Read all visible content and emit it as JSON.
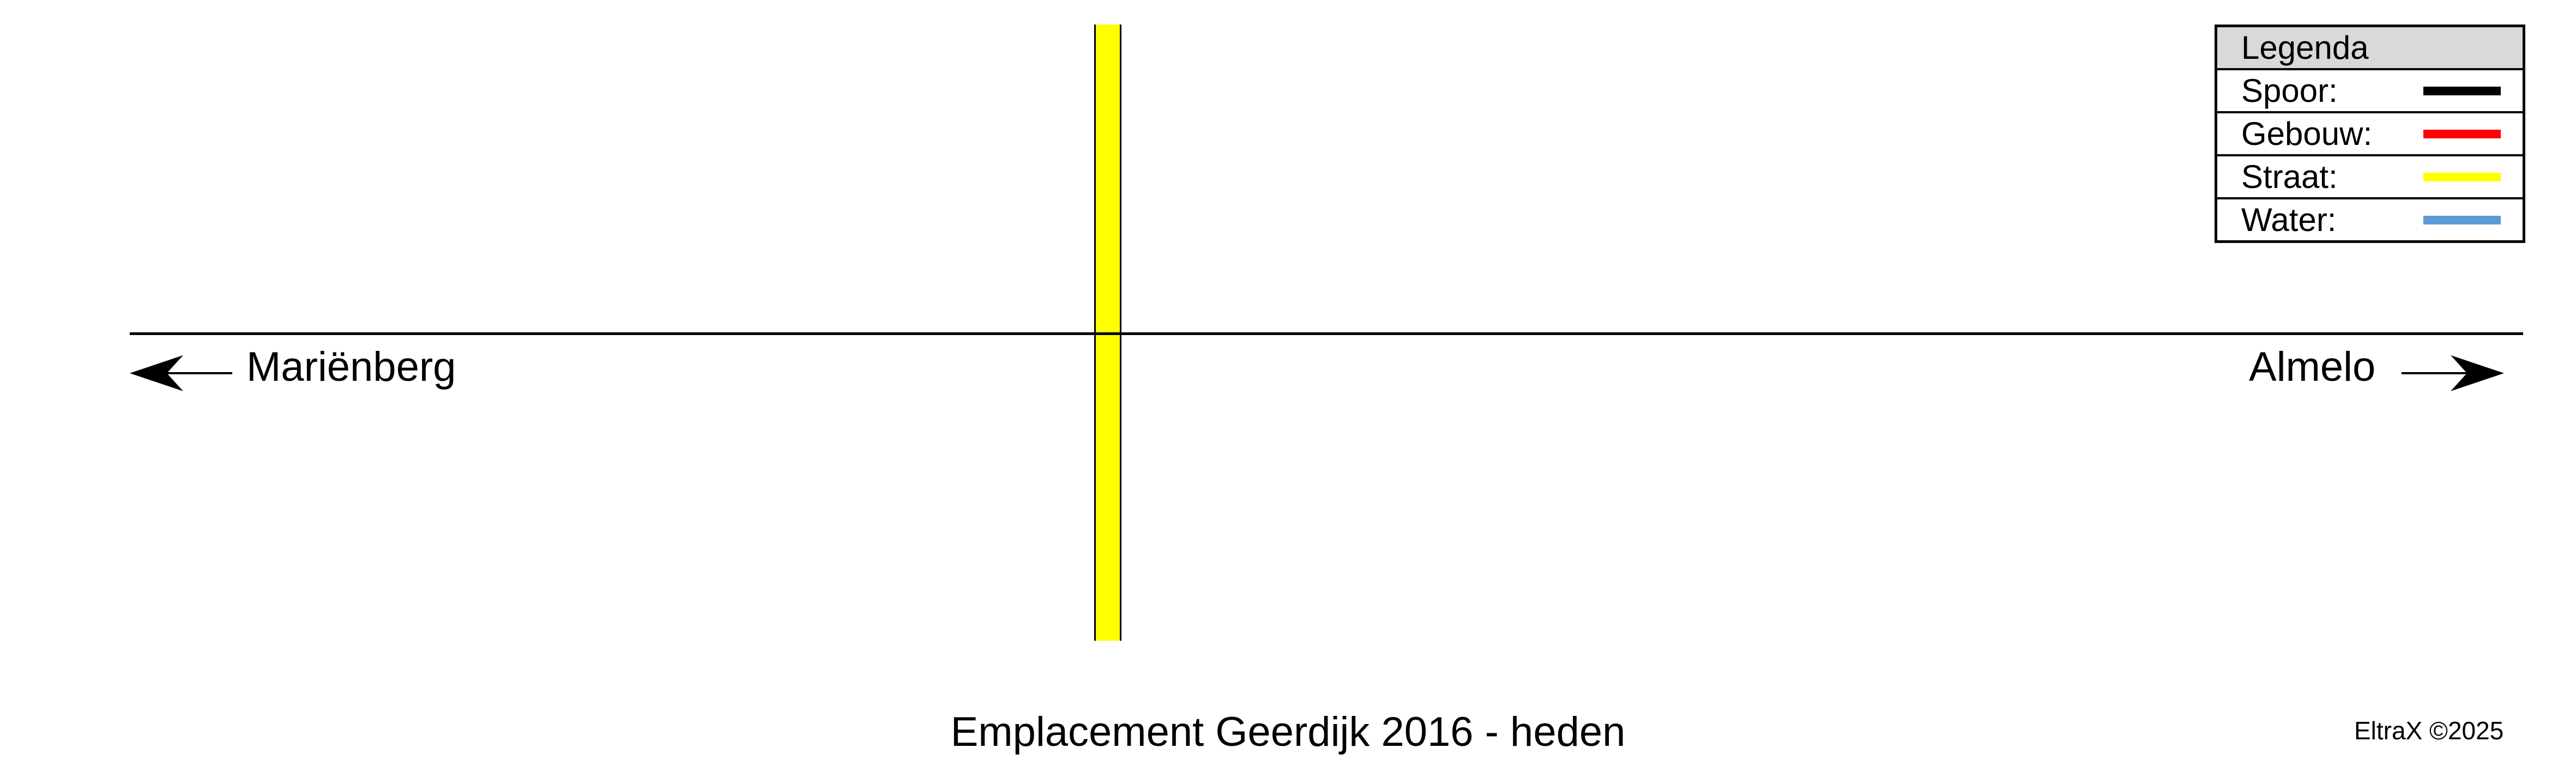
{
  "diagram": {
    "title": "Emplacement Geerdijk 2016 - heden",
    "copyright": "EltraX ©2025",
    "directions": {
      "left": {
        "label": "Mariënberg",
        "icon": "arrow-left-icon"
      },
      "right": {
        "label": "Almelo",
        "icon": "arrow-right-icon"
      }
    },
    "legend": {
      "title": "Legenda",
      "items": [
        {
          "label": "Spoor:",
          "color": "#000000"
        },
        {
          "label": "Gebouw:",
          "color": "#ff0000"
        },
        {
          "label": "Straat:",
          "color": "#ffff00"
        },
        {
          "label": "Water:",
          "color": "#5b9bd5"
        }
      ]
    }
  }
}
